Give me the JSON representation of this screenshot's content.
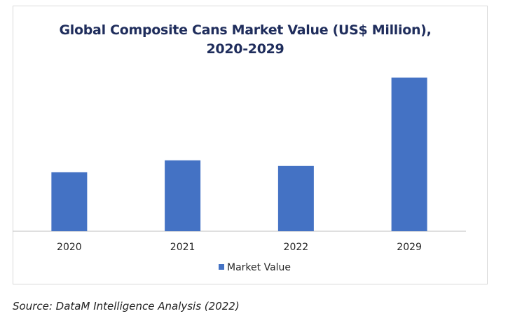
{
  "chart_data": {
    "type": "bar",
    "title": "Global Composite Cans Market Value (US$ Million), 2020-2029",
    "categories": [
      "2020",
      "2021",
      "2022",
      "2029"
    ],
    "series": [
      {
        "name": "Market Value",
        "values": [
          37,
          44.5,
          41,
          96.5
        ]
      }
    ],
    "xlabel": "",
    "ylabel": "",
    "ylim": [
      0,
      110
    ],
    "grid": false,
    "legend": "bottom",
    "colors": {
      "bar": "#4472c4",
      "axis": "#bfbfbf"
    }
  },
  "source": "Source: DataM Intelligence Analysis (2022)"
}
